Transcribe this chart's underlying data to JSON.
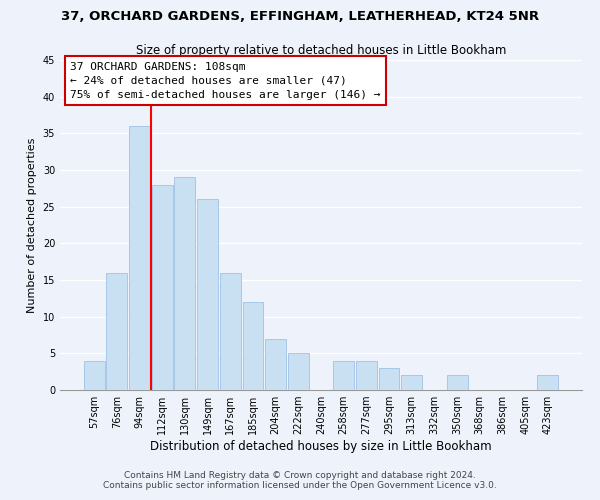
{
  "title_line1": "37, ORCHARD GARDENS, EFFINGHAM, LEATHERHEAD, KT24 5NR",
  "title_line2": "Size of property relative to detached houses in Little Bookham",
  "xlabel": "Distribution of detached houses by size in Little Bookham",
  "ylabel": "Number of detached properties",
  "footer_line1": "Contains HM Land Registry data © Crown copyright and database right 2024.",
  "footer_line2": "Contains public sector information licensed under the Open Government Licence v3.0.",
  "bar_labels": [
    "57sqm",
    "76sqm",
    "94sqm",
    "112sqm",
    "130sqm",
    "149sqm",
    "167sqm",
    "185sqm",
    "204sqm",
    "222sqm",
    "240sqm",
    "258sqm",
    "277sqm",
    "295sqm",
    "313sqm",
    "332sqm",
    "350sqm",
    "368sqm",
    "386sqm",
    "405sqm",
    "423sqm"
  ],
  "bar_values": [
    4,
    16,
    36,
    28,
    29,
    26,
    16,
    12,
    7,
    5,
    0,
    4,
    4,
    3,
    2,
    0,
    2,
    0,
    0,
    0,
    2
  ],
  "bar_color": "#c9dff2",
  "bar_edge_color": "#a8c8e8",
  "vline_color": "red",
  "vline_index": 3,
  "annotation_text_line1": "37 ORCHARD GARDENS: 108sqm",
  "annotation_text_line2": "← 24% of detached houses are smaller (47)",
  "annotation_text_line3": "75% of semi-detached houses are larger (146) →",
  "annotation_box_color": "white",
  "annotation_box_edge": "#cc0000",
  "ylim": [
    0,
    45
  ],
  "yticks": [
    0,
    5,
    10,
    15,
    20,
    25,
    30,
    35,
    40,
    45
  ],
  "background_color": "#eef3fb",
  "grid_color": "white",
  "title1_fontsize": 9.5,
  "title2_fontsize": 8.5,
  "xlabel_fontsize": 8.5,
  "ylabel_fontsize": 8,
  "tick_fontsize": 7,
  "ann_fontsize": 8,
  "footer_fontsize": 6.5
}
